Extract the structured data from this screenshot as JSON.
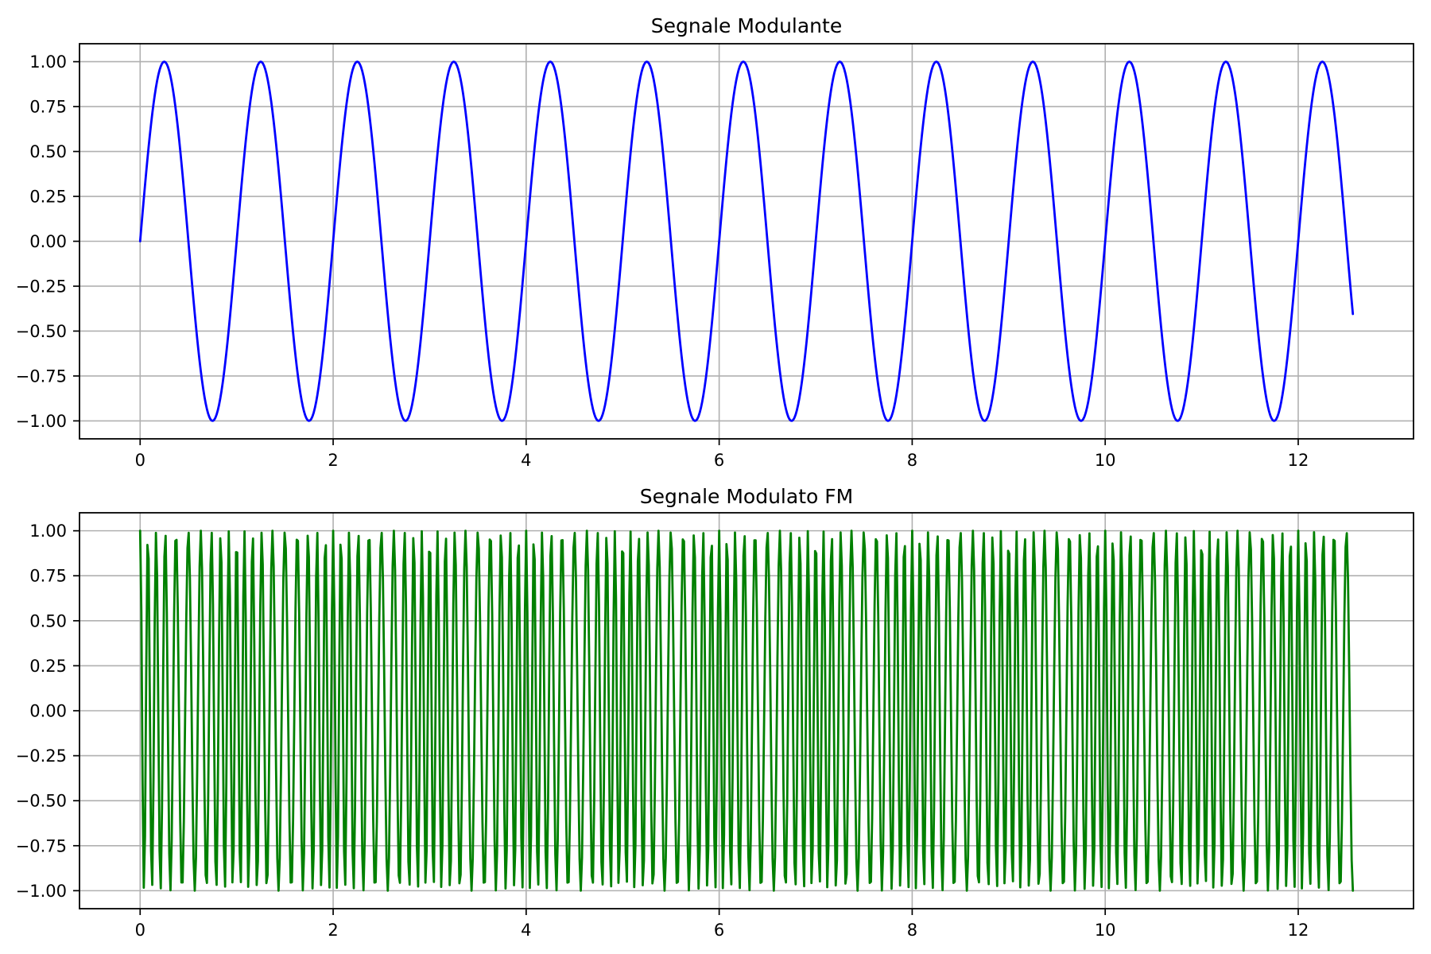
{
  "figure": {
    "background_color": "#ffffff",
    "grid_color": "#b0b0b0",
    "spine_color": "#000000",
    "text_color": "#000000"
  },
  "chart_data": [
    {
      "type": "line",
      "title": "Segnale Modulante",
      "line_color": "#0000ff",
      "grid": true,
      "legend": null,
      "signal": {
        "kind": "sine",
        "formula": "sin(2*pi*fm*t)",
        "fm_hz": 1,
        "amplitude": 1,
        "t_start": 0,
        "t_end": 12.566370614359172,
        "n_samples": 1000,
        "end_value": -0.405
      },
      "x_ticks": [
        0,
        2,
        4,
        6,
        8,
        10,
        12
      ],
      "x_tick_labels": [
        "0",
        "2",
        "4",
        "6",
        "8",
        "10",
        "12"
      ],
      "y_ticks": [
        1.0,
        0.75,
        0.5,
        0.25,
        0.0,
        -0.25,
        -0.5,
        -0.75,
        -1.0
      ],
      "y_tick_labels": [
        "1.00",
        "0.75",
        "0.50",
        "0.25",
        "0.00",
        "−0.25",
        "−0.50",
        "−0.75",
        "−1.00"
      ],
      "xlim": [
        -0.6283185307,
        13.1946891451
      ],
      "ylim": [
        -1.1,
        1.1
      ],
      "xlabel": "",
      "ylabel": ""
    },
    {
      "type": "line",
      "title": "Segnale Modulato FM",
      "line_color": "#008000",
      "grid": true,
      "legend": null,
      "signal": {
        "kind": "fm",
        "formula": "cos(2*pi*fc*t + beta*sin(2*pi*fm*t))",
        "fc_hz": 10,
        "fm_hz": 1,
        "beta": 2.5,
        "amplitude": 1,
        "t_start": 0,
        "t_end": 12.566370614359172,
        "n_samples": 1000
      },
      "x_ticks": [
        0,
        2,
        4,
        6,
        8,
        10,
        12
      ],
      "x_tick_labels": [
        "0",
        "2",
        "4",
        "6",
        "8",
        "10",
        "12"
      ],
      "y_ticks": [
        1.0,
        0.75,
        0.5,
        0.25,
        0.0,
        -0.25,
        -0.5,
        -0.75,
        -1.0
      ],
      "y_tick_labels": [
        "1.00",
        "0.75",
        "0.50",
        "0.25",
        "0.00",
        "−0.25",
        "−0.50",
        "−0.75",
        "−1.00"
      ],
      "xlim": [
        -0.6283185307,
        13.1946891451
      ],
      "ylim": [
        -1.1,
        1.1
      ],
      "xlabel": "",
      "ylabel": ""
    }
  ]
}
